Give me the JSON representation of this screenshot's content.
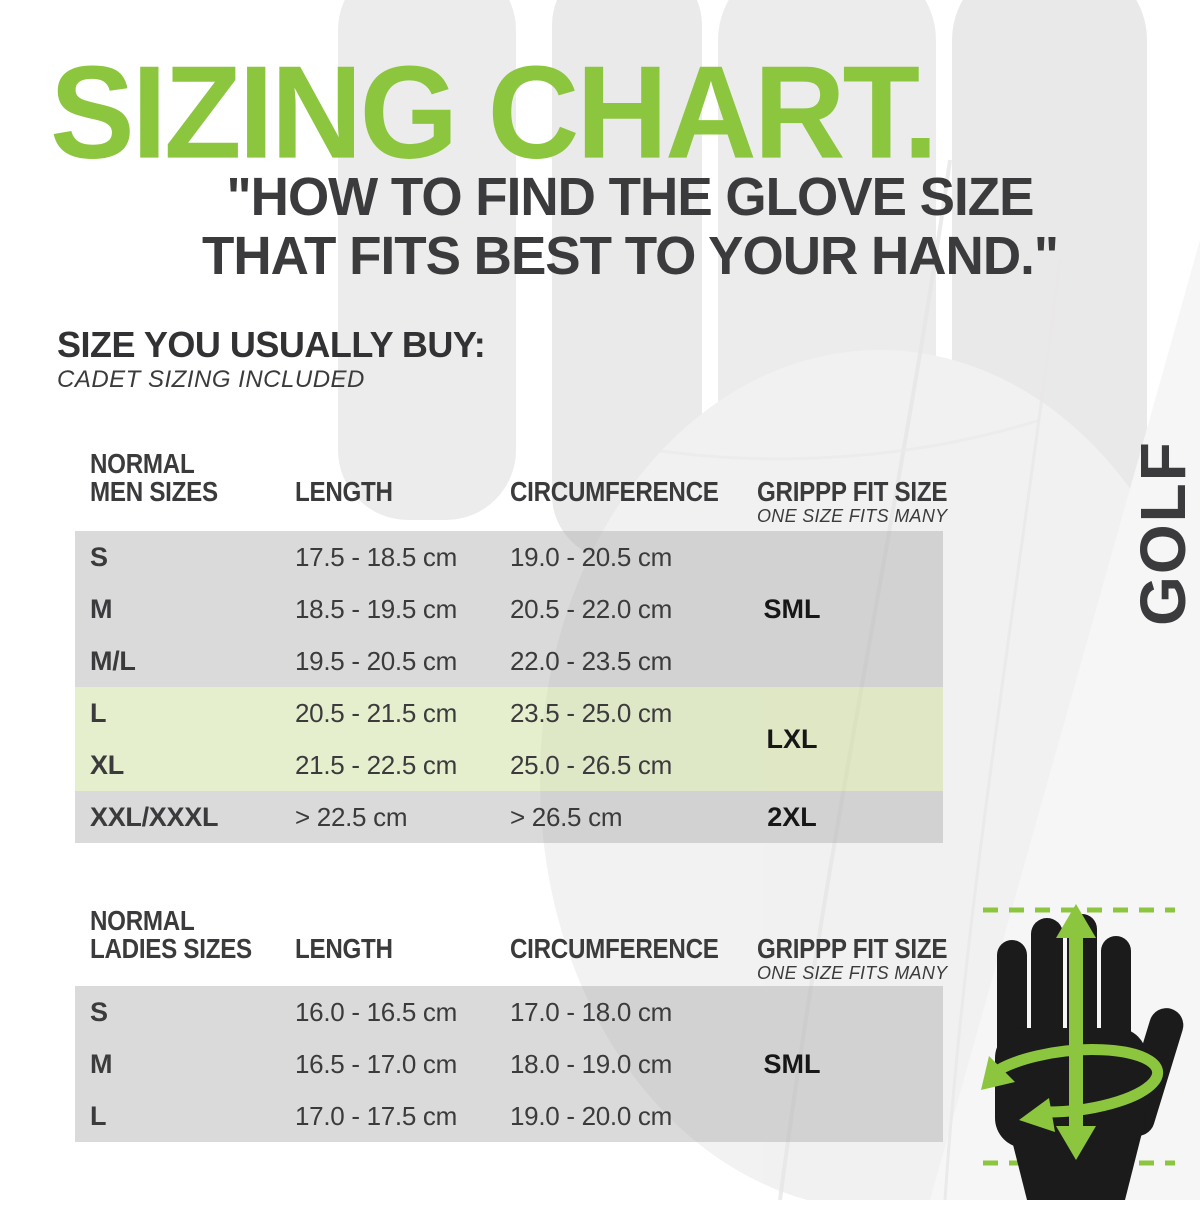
{
  "header": {
    "title": "SIZING CHART.",
    "subtitle_line1": "\"HOW TO FIND THE GLOVE SIZE",
    "subtitle_line2": "THAT FITS BEST TO YOUR HAND.\"",
    "section_title": "SIZE YOU USUALLY BUY:",
    "section_note": "CADET SIZING INCLUDED"
  },
  "side_label": "GOLF",
  "colors": {
    "accent_green": "#8CC63F",
    "dark_text": "#3B3B3D",
    "row_gray": "#DCDADB",
    "row_green": "#EAF1D9",
    "hand_black": "#1B1B1B"
  },
  "men_table": {
    "columns": {
      "size_line1": "NORMAL",
      "size_line2": "MEN SIZES",
      "length": "LENGTH",
      "circumference": "CIRCUMFERENCE",
      "fit": "GRIPPP FIT SIZE",
      "fit_note": "ONE SIZE FITS MANY"
    },
    "rows": [
      {
        "size": "S",
        "length": "17.5 - 18.5 cm",
        "circumference": "19.0 - 20.5 cm",
        "band": "gray"
      },
      {
        "size": "M",
        "length": "18.5 - 19.5 cm",
        "circumference": "20.5 - 22.0 cm",
        "band": "gray"
      },
      {
        "size": "M/L",
        "length": "19.5 - 20.5 cm",
        "circumference": "22.0 - 23.5 cm",
        "band": "gray"
      },
      {
        "size": "L",
        "length": "20.5 - 21.5 cm",
        "circumference": "23.5 - 25.0 cm",
        "band": "green"
      },
      {
        "size": "XL",
        "length": "21.5 - 22.5 cm",
        "circumference": "25.0 - 26.5 cm",
        "band": "green"
      },
      {
        "size": "XXL/XXXL",
        "length": "> 22.5 cm",
        "circumference": "> 26.5 cm",
        "band": "gray"
      }
    ],
    "fit_labels": [
      {
        "label": "SML",
        "row_start": 2,
        "row_span": 1
      },
      {
        "label": "LXL",
        "row_start": 4,
        "row_span": 2
      },
      {
        "label": "2XL",
        "row_start": 6,
        "row_span": 1
      }
    ]
  },
  "ladies_table": {
    "columns": {
      "size_line1": "NORMAL",
      "size_line2": "LADIES SIZES",
      "length": "LENGTH",
      "circumference": "CIRCUMFERENCE",
      "fit": "GRIPPP FIT SIZE",
      "fit_note": "ONE SIZE FITS MANY"
    },
    "rows": [
      {
        "size": "S",
        "length": "16.0 - 16.5 cm",
        "circumference": "17.0 - 18.0 cm",
        "band": "gray"
      },
      {
        "size": "M",
        "length": "16.5 - 17.0 cm",
        "circumference": "18.0 - 19.0 cm",
        "band": "gray"
      },
      {
        "size": "L",
        "length": "17.0 - 17.5 cm",
        "circumference": "19.0 - 20.0 cm",
        "band": "gray"
      }
    ],
    "fit_labels": [
      {
        "label": "SML",
        "row_start": 2,
        "row_span": 1
      }
    ]
  }
}
